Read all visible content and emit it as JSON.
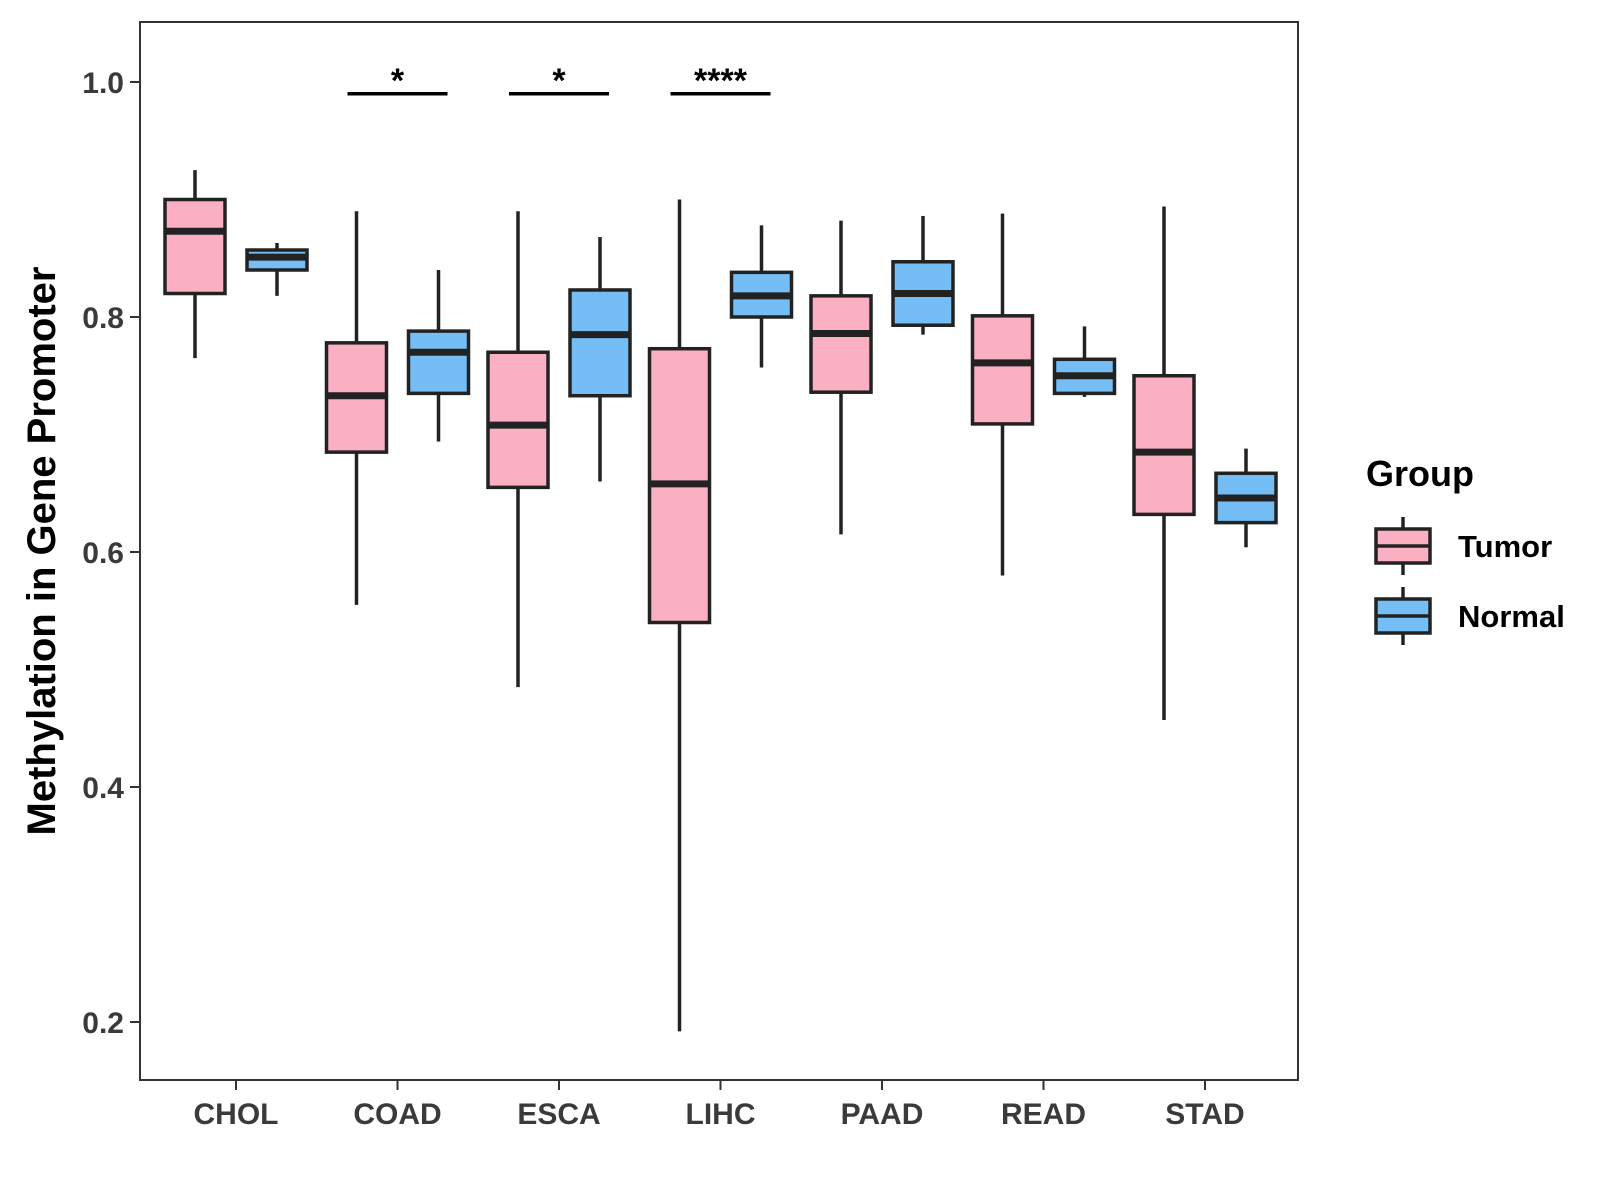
{
  "chart_data": {
    "type": "boxplot",
    "title": "",
    "xlabel": "",
    "ylabel": "Methylation in Gene Promoter",
    "ylim": [
      0.15,
      1.05
    ],
    "yticks": [
      0.2,
      0.4,
      0.6,
      0.8,
      1.0
    ],
    "ytick_labels": [
      "0.2",
      "0.4",
      "0.6",
      "0.8",
      "1.0"
    ],
    "categories": [
      "CHOL",
      "COAD",
      "ESCA",
      "LIHC",
      "PAAD",
      "READ",
      "STAD"
    ],
    "legend": {
      "title": "Group",
      "position": "right"
    },
    "series": [
      {
        "name": "Tumor",
        "color": "#FAB0C2",
        "boxes": [
          {
            "min": 0.765,
            "q1": 0.82,
            "median": 0.873,
            "q3": 0.9,
            "max": 0.925
          },
          {
            "min": 0.555,
            "q1": 0.685,
            "median": 0.733,
            "q3": 0.778,
            "max": 0.89
          },
          {
            "min": 0.485,
            "q1": 0.655,
            "median": 0.708,
            "q3": 0.77,
            "max": 0.89
          },
          {
            "min": 0.192,
            "q1": 0.54,
            "median": 0.658,
            "q3": 0.773,
            "max": 0.9
          },
          {
            "min": 0.615,
            "q1": 0.736,
            "median": 0.786,
            "q3": 0.818,
            "max": 0.882
          },
          {
            "min": 0.58,
            "q1": 0.709,
            "median": 0.761,
            "q3": 0.801,
            "max": 0.888
          },
          {
            "min": 0.457,
            "q1": 0.632,
            "median": 0.685,
            "q3": 0.75,
            "max": 0.894
          }
        ]
      },
      {
        "name": "Normal",
        "color": "#74BEF5",
        "boxes": [
          {
            "min": 0.818,
            "q1": 0.84,
            "median": 0.851,
            "q3": 0.857,
            "max": 0.863
          },
          {
            "min": 0.694,
            "q1": 0.735,
            "median": 0.77,
            "q3": 0.788,
            "max": 0.84
          },
          {
            "min": 0.66,
            "q1": 0.733,
            "median": 0.785,
            "q3": 0.823,
            "max": 0.868
          },
          {
            "min": 0.757,
            "q1": 0.8,
            "median": 0.818,
            "q3": 0.838,
            "max": 0.878
          },
          {
            "min": 0.785,
            "q1": 0.793,
            "median": 0.82,
            "q3": 0.847,
            "max": 0.886
          },
          {
            "min": 0.732,
            "q1": 0.735,
            "median": 0.75,
            "q3": 0.764,
            "max": 0.792
          },
          {
            "min": 0.604,
            "q1": 0.625,
            "median": 0.646,
            "q3": 0.667,
            "max": 0.688
          }
        ]
      }
    ],
    "annotations": [
      {
        "category": "COAD",
        "label": "*",
        "y": 0.99
      },
      {
        "category": "ESCA",
        "label": "*",
        "y": 0.99
      },
      {
        "category": "LIHC",
        "label": "****",
        "y": 0.99
      }
    ]
  }
}
